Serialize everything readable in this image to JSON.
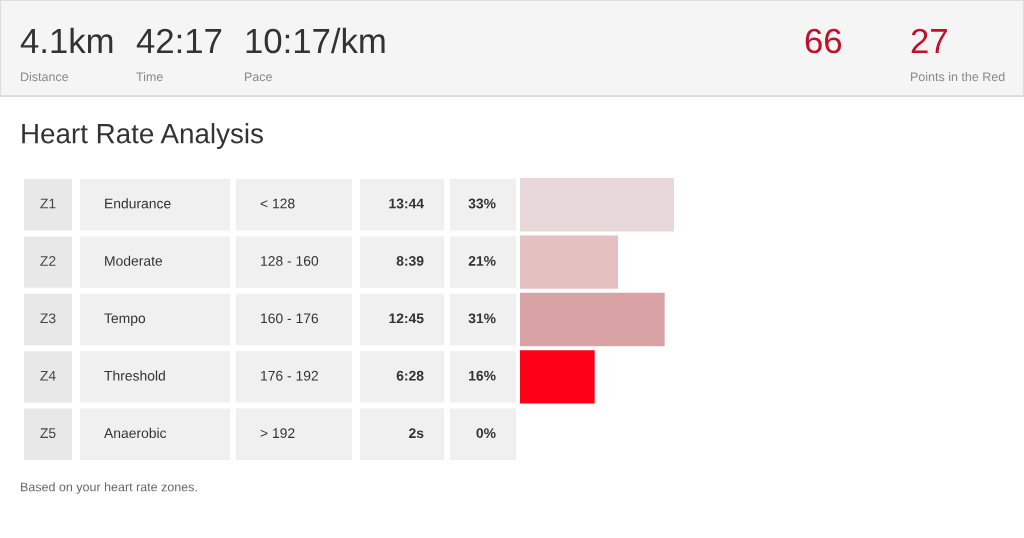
{
  "chart_data": {
    "type": "bar",
    "orientation": "horizontal",
    "title": "Heart Rate Analysis",
    "categories": [
      "Z1",
      "Z2",
      "Z3",
      "Z4",
      "Z5"
    ],
    "values": [
      33,
      21,
      31,
      16,
      0
    ],
    "value_labels": [
      "33%",
      "21%",
      "31%",
      "16%",
      "0%"
    ],
    "colors": [
      "#e8d8d9",
      "#e5c0c1",
      "#d9a3a6",
      "#ff0019",
      "#ffffff"
    ],
    "annotations": [
      "4.1km",
      "Distance",
      "42:17",
      "Time",
      "10:17/km",
      "Pace",
      "66",
      null,
      "27",
      "Points in the Red",
      "Endurance",
      "< 128",
      "13:44",
      "Moderate",
      "128 - 160",
      "8:39",
      "Tempo",
      "160 - 176",
      "12:45",
      "Threshold",
      "176 - 192",
      "6:28",
      "Anaerobic",
      "> 192",
      "2s",
      "Based on your heart rate zones."
    ]
  }
}
